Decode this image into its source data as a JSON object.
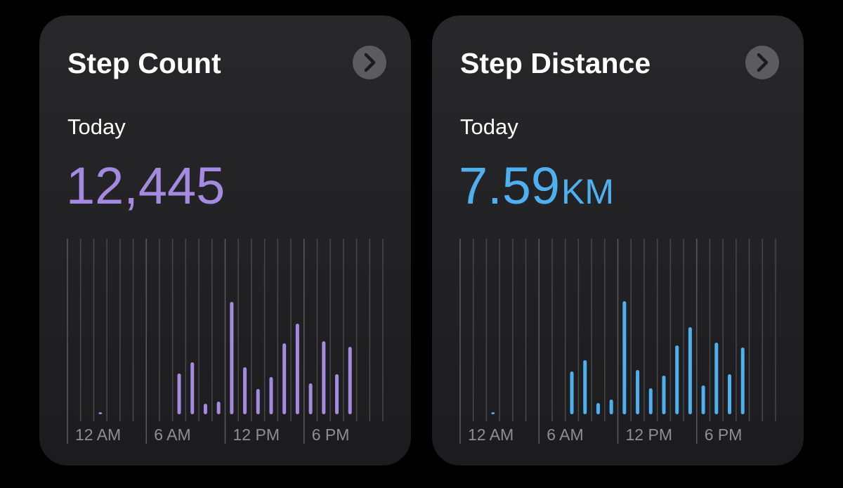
{
  "cards": [
    {
      "title": "Step Count",
      "period": "Today",
      "value": "12,445",
      "chart": {
        "type": "bar",
        "color": "#a48ae0",
        "categories": [
          "12 AM",
          null,
          null,
          null,
          null,
          null,
          "6 AM",
          null,
          null,
          null,
          null,
          null,
          "12 PM",
          null,
          null,
          null,
          null,
          null,
          "6 PM",
          null,
          null,
          null,
          null,
          null
        ],
        "values": [
          0,
          0,
          3,
          0,
          0,
          0,
          0,
          0,
          58,
          74,
          15,
          18,
          160,
          67,
          36,
          53,
          101,
          129,
          44,
          104,
          57,
          96,
          0,
          0
        ],
        "ylim": [
          0,
          250
        ]
      }
    },
    {
      "title": "Step Distance",
      "period": "Today",
      "value": "7.59",
      "unit": "KM",
      "chart": {
        "type": "bar",
        "color": "#4fb0f0",
        "categories": [
          "12 AM",
          null,
          null,
          null,
          null,
          null,
          "6 AM",
          null,
          null,
          null,
          null,
          null,
          "12 PM",
          null,
          null,
          null,
          null,
          null,
          "6 PM",
          null,
          null,
          null,
          null,
          null
        ],
        "values": [
          0,
          0,
          3,
          0,
          0,
          0,
          0,
          0,
          61,
          77,
          16,
          21,
          161,
          63,
          37,
          55,
          98,
          124,
          41,
          102,
          57,
          95,
          0,
          0
        ],
        "ylim": [
          0,
          250
        ]
      }
    }
  ]
}
